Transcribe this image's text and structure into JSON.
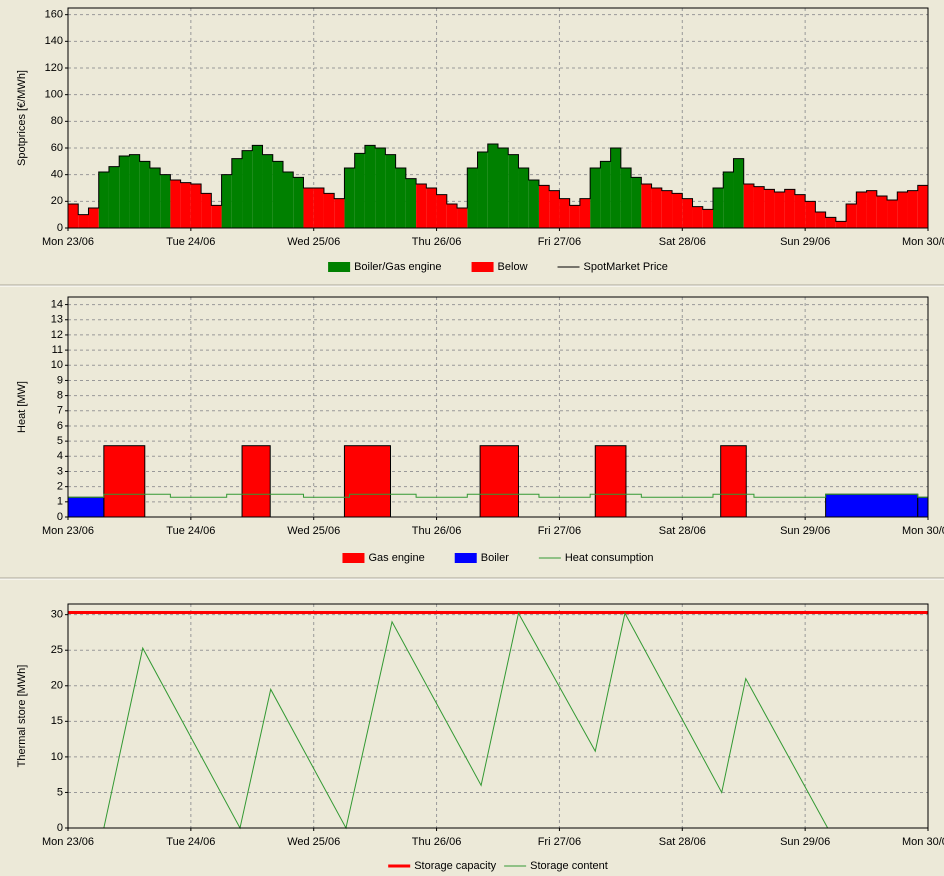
{
  "chart_data": [
    {
      "type": "bar",
      "ylabel": "Spotprices [€/MWh]",
      "xlim": [
        0,
        168
      ],
      "xticks": [
        {
          "value": 0,
          "label": "Mon 23/06"
        },
        {
          "value": 24,
          "label": "Tue 24/06"
        },
        {
          "value": 48,
          "label": "Wed 25/06"
        },
        {
          "value": 72,
          "label": "Thu 26/06"
        },
        {
          "value": 96,
          "label": "Fri 27/06"
        },
        {
          "value": 120,
          "label": "Sat 28/06"
        },
        {
          "value": 144,
          "label": "Sun 29/06"
        },
        {
          "value": 168,
          "label": "Mon 30/06"
        }
      ],
      "ylim": [
        0,
        165
      ],
      "yticks": [
        0,
        20,
        40,
        60,
        80,
        100,
        120,
        140,
        160
      ],
      "grid": true,
      "x": [
        0,
        2,
        4,
        6,
        8,
        10,
        12,
        14,
        16,
        18,
        20,
        22,
        24,
        26,
        28,
        30,
        32,
        34,
        36,
        38,
        40,
        42,
        44,
        46,
        48,
        50,
        52,
        54,
        56,
        58,
        60,
        62,
        64,
        66,
        68,
        70,
        72,
        74,
        76,
        78,
        80,
        82,
        84,
        86,
        88,
        90,
        92,
        94,
        96,
        98,
        100,
        102,
        104,
        106,
        108,
        110,
        112,
        114,
        116,
        118,
        120,
        122,
        124,
        126,
        128,
        130,
        132,
        134,
        136,
        138,
        140,
        142,
        144,
        146,
        148,
        150,
        152,
        154,
        156,
        158,
        160,
        162,
        164,
        166
      ],
      "series": [
        {
          "name": "Boiler/Gas engine",
          "type": "bar",
          "color": "#008000",
          "values": [
            null,
            null,
            null,
            42,
            46,
            54,
            55,
            50,
            45,
            40,
            null,
            null,
            null,
            null,
            null,
            40,
            52,
            58,
            62,
            55,
            50,
            42,
            38,
            null,
            null,
            null,
            null,
            45,
            56,
            62,
            60,
            55,
            45,
            37,
            null,
            null,
            null,
            null,
            null,
            45,
            57,
            63,
            60,
            55,
            45,
            36,
            null,
            null,
            null,
            null,
            null,
            45,
            50,
            60,
            45,
            38,
            null,
            null,
            null,
            null,
            null,
            null,
            null,
            30,
            42,
            52,
            null,
            null,
            null,
            null,
            null,
            null,
            null,
            null,
            null,
            null,
            null,
            null,
            null,
            null,
            null,
            null,
            null,
            null
          ]
        },
        {
          "name": "Below",
          "type": "bar",
          "color": "#ff0000",
          "values": [
            18,
            10,
            15,
            null,
            null,
            null,
            null,
            null,
            null,
            null,
            36,
            34,
            33,
            26,
            17,
            null,
            null,
            null,
            null,
            null,
            null,
            null,
            null,
            30,
            30,
            26,
            22,
            null,
            null,
            null,
            null,
            null,
            null,
            null,
            33,
            30,
            25,
            18,
            15,
            null,
            null,
            null,
            null,
            null,
            null,
            null,
            32,
            28,
            22,
            17,
            22,
            null,
            null,
            null,
            null,
            null,
            33,
            30,
            28,
            26,
            22,
            16,
            14,
            null,
            null,
            null,
            33,
            31,
            29,
            27,
            29,
            25,
            20,
            12,
            8,
            5,
            18,
            27,
            28,
            24,
            21,
            27,
            28,
            32
          ]
        },
        {
          "name": "SpotMarket Price",
          "type": "step",
          "color": "#000000",
          "values": [
            18,
            10,
            15,
            42,
            46,
            54,
            55,
            50,
            45,
            40,
            36,
            34,
            33,
            26,
            17,
            40,
            52,
            58,
            62,
            55,
            50,
            42,
            38,
            30,
            30,
            26,
            22,
            45,
            56,
            62,
            60,
            55,
            45,
            37,
            33,
            30,
            25,
            18,
            15,
            45,
            57,
            63,
            60,
            55,
            45,
            36,
            32,
            28,
            22,
            17,
            22,
            45,
            50,
            60,
            45,
            38,
            33,
            30,
            28,
            26,
            22,
            16,
            14,
            30,
            42,
            52,
            33,
            31,
            29,
            27,
            29,
            25,
            20,
            12,
            8,
            5,
            18,
            27,
            28,
            24,
            21,
            27,
            28,
            32
          ]
        }
      ]
    },
    {
      "type": "bar",
      "ylabel": "Heat [MW]",
      "xlim": [
        0,
        168
      ],
      "xticks": [
        {
          "value": 0,
          "label": "Mon 23/06"
        },
        {
          "value": 24,
          "label": "Tue 24/06"
        },
        {
          "value": 48,
          "label": "Wed 25/06"
        },
        {
          "value": 72,
          "label": "Thu 26/06"
        },
        {
          "value": 96,
          "label": "Fri 27/06"
        },
        {
          "value": 120,
          "label": "Sat 28/06"
        },
        {
          "value": 144,
          "label": "Sun 29/06"
        },
        {
          "value": 168,
          "label": "Mon 30/06"
        }
      ],
      "ylim": [
        0,
        14.5
      ],
      "yticks": [
        0,
        1,
        2,
        3,
        4,
        5,
        6,
        7,
        8,
        9,
        10,
        11,
        12,
        13,
        14
      ],
      "grid": true,
      "series": [
        {
          "name": "Gas engine",
          "type": "bar",
          "color": "#ff0000",
          "x": [
            [
              7,
              15
            ],
            [
              34,
              39.5
            ],
            [
              54,
              63
            ],
            [
              80.5,
              88
            ],
            [
              103,
              109
            ],
            [
              127.5,
              132.5
            ]
          ],
          "values": [
            4.7,
            4.7,
            4.7,
            4.7,
            4.7,
            4.7
          ]
        },
        {
          "name": "Boiler",
          "type": "bar",
          "color": "#0000ff",
          "x": [
            [
              0,
              7
            ],
            [
              148,
              166
            ],
            [
              166,
              168
            ]
          ],
          "values": [
            1.3,
            1.5,
            1.3
          ]
        },
        {
          "name": "Heat consumption",
          "type": "step",
          "color": "#339933",
          "x": [
            0,
            7,
            20,
            31,
            46,
            55,
            68,
            78,
            92,
            102,
            112,
            126,
            134,
            148,
            166
          ],
          "values": [
            1.3,
            1.5,
            1.3,
            1.5,
            1.3,
            1.5,
            1.3,
            1.5,
            1.3,
            1.5,
            1.3,
            1.5,
            1.3,
            1.5,
            1.3
          ]
        }
      ]
    },
    {
      "type": "line",
      "ylabel": "Thermal store [MWh]",
      "xlim": [
        0,
        168
      ],
      "xticks": [
        {
          "value": 0,
          "label": "Mon 23/06"
        },
        {
          "value": 24,
          "label": "Tue 24/06"
        },
        {
          "value": 48,
          "label": "Wed 25/06"
        },
        {
          "value": 72,
          "label": "Thu 26/06"
        },
        {
          "value": 96,
          "label": "Fri 27/06"
        },
        {
          "value": 120,
          "label": "Sat 28/06"
        },
        {
          "value": 144,
          "label": "Sun 29/06"
        },
        {
          "value": 168,
          "label": "Mon 30/06"
        }
      ],
      "ylim": [
        0,
        31.5
      ],
      "yticks": [
        0,
        5,
        10,
        15,
        20,
        25,
        30
      ],
      "grid": true,
      "series": [
        {
          "name": "Storage capacity",
          "type": "line",
          "color": "#ff0000",
          "x": [
            0,
            168
          ],
          "values": [
            30.3,
            30.3
          ]
        },
        {
          "name": "Storage content",
          "type": "line",
          "color": "#339933",
          "x": [
            0,
            7,
            14.6,
            33.6,
            39.6,
            54.3,
            63.3,
            80.7,
            88,
            103,
            108.8,
            127.7,
            132.4,
            148.4,
            168
          ],
          "values": [
            0,
            0,
            25.3,
            0,
            19.5,
            0,
            29,
            6,
            30.2,
            10.8,
            30.2,
            5,
            21,
            0,
            0
          ]
        }
      ]
    }
  ]
}
